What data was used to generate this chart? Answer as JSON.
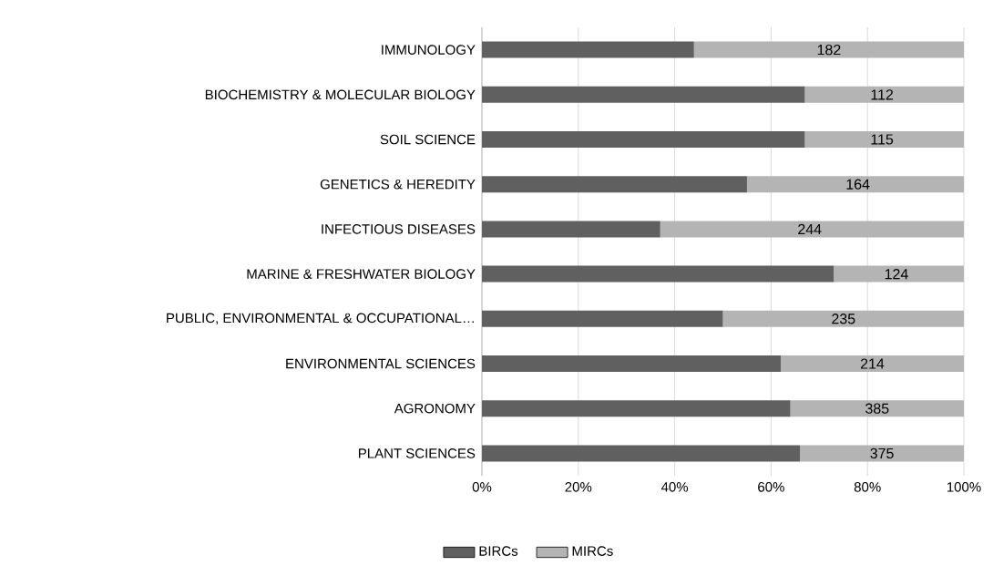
{
  "chart_data": {
    "type": "bar",
    "orientation": "horizontal",
    "stacked": true,
    "categories": [
      "IMMUNOLOGY",
      "BIOCHEMISTRY & MOLECULAR BIOLOGY",
      "SOIL SCIENCE",
      "GENETICS & HEREDITY",
      "INFECTIOUS DISEASES",
      "MARINE & FRESHWATER BIOLOGY",
      "PUBLIC, ENVIRONMENTAL & OCCUPATIONAL…",
      "ENVIRONMENTAL SCIENCES",
      "AGRONOMY",
      "PLANT SCIENCES"
    ],
    "series": [
      {
        "name": "BIRCs",
        "color": "#606060",
        "values": [
          44,
          67,
          67,
          55,
          37,
          73,
          50,
          62,
          64,
          66
        ]
      },
      {
        "name": "MIRCs",
        "color": "#b4b4b4",
        "values": [
          56,
          33,
          33,
          45,
          63,
          27,
          50,
          38,
          36,
          34
        ]
      }
    ],
    "annotations": [
      {
        "text": "182",
        "x": 72,
        "y": "IMMUNOLOGY"
      },
      {
        "text": "112",
        "x": 83,
        "y": "BIOCHEMISTRY & MOLECULAR BIOLOGY"
      },
      {
        "text": "115",
        "x": 83,
        "y": "SOIL SCIENCE"
      },
      {
        "text": "164",
        "x": 78,
        "y": "GENETICS & HEREDITY"
      },
      {
        "text": "244",
        "x": 68,
        "y": "INFECTIOUS DISEASES"
      },
      {
        "text": "124",
        "x": 86,
        "y": "MARINE & FRESHWATER BIOLOGY"
      },
      {
        "text": "235",
        "x": 75,
        "y": "PUBLIC, ENVIRONMENTAL & OCCUPATIONAL…"
      },
      {
        "text": "214",
        "x": 81,
        "y": "ENVIRONMENTAL SCIENCES"
      },
      {
        "text": "385",
        "x": 82,
        "y": "AGRONOMY"
      },
      {
        "text": "375",
        "x": 83,
        "y": "PLANT SCIENCES"
      }
    ],
    "xlim": [
      0,
      100
    ],
    "xticks": [
      {
        "value": 0,
        "label": "0%"
      },
      {
        "value": 20,
        "label": "20%"
      },
      {
        "value": 40,
        "label": "40%"
      },
      {
        "value": 60,
        "label": "60%"
      },
      {
        "value": 80,
        "label": "80%"
      },
      {
        "value": 100,
        "label": "100%"
      }
    ],
    "grid": "x",
    "legend": "bottom"
  }
}
